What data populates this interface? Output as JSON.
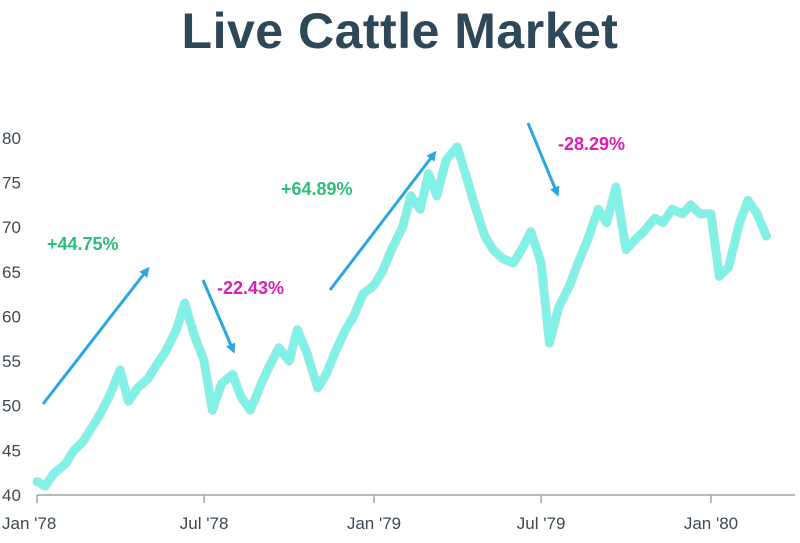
{
  "chart_data": {
    "type": "line",
    "title": "Live Cattle Market",
    "xlabel": "",
    "ylabel": "",
    "x_ticks": [
      "Jan '78",
      "Jul '78",
      "Jan '79",
      "Jul '79",
      "Jan '80"
    ],
    "y_ticks": [
      40,
      45,
      50,
      55,
      60,
      65,
      70,
      75,
      80
    ],
    "ylim": [
      40,
      82
    ],
    "xlim": [
      "1978-01",
      "1980-04"
    ],
    "grid": false,
    "colors": {
      "line": "#7df3e8",
      "line_outline": "#38d8cc",
      "gain": "#2dbe7a",
      "loss": "#d81fb4",
      "arrow": "#2ba6e0",
      "title": "#2f4858"
    },
    "series": [
      {
        "x": [
          "1978-01-01",
          "1978-01-10",
          "1978-01-20",
          "1978-02-01",
          "1978-02-10",
          "1978-02-20",
          "1978-03-01",
          "1978-03-10",
          "1978-03-20",
          "1978-04-01",
          "1978-04-10",
          "1978-04-20",
          "1978-05-01",
          "1978-05-10",
          "1978-05-20",
          "1978-06-01",
          "1978-06-10",
          "1978-06-20",
          "1978-07-01",
          "1978-07-10",
          "1978-07-20",
          "1978-08-01",
          "1978-08-10",
          "1978-08-20",
          "1978-09-01",
          "1978-09-10",
          "1978-09-20",
          "1978-10-01",
          "1978-10-10",
          "1978-10-20",
          "1978-11-01",
          "1978-11-10",
          "1978-11-20",
          "1978-12-01",
          "1978-12-10",
          "1978-12-20",
          "1979-01-01",
          "1979-01-10",
          "1979-01-20",
          "1979-02-01",
          "1979-02-10",
          "1979-02-20",
          "1979-03-01",
          "1979-03-10",
          "1979-03-20",
          "1979-04-01",
          "1979-04-10",
          "1979-04-20",
          "1979-05-01",
          "1979-05-10",
          "1979-05-20",
          "1979-06-01",
          "1979-06-10",
          "1979-06-20",
          "1979-07-01",
          "1979-07-10",
          "1979-07-20",
          "1979-08-01",
          "1979-08-10",
          "1979-08-20",
          "1979-09-01",
          "1979-09-10",
          "1979-09-20",
          "1979-10-01",
          "1979-10-10",
          "1979-10-20",
          "1979-11-01",
          "1979-11-10",
          "1979-11-20",
          "1979-12-01",
          "1979-12-10",
          "1979-12-20",
          "1980-01-01",
          "1980-01-10",
          "1980-01-20",
          "1980-02-01",
          "1980-02-10",
          "1980-02-20",
          "1980-03-01"
        ],
        "values": [
          41.5,
          41.0,
          42.5,
          43.5,
          45.0,
          46.0,
          47.5,
          49.0,
          51.0,
          54.0,
          50.5,
          52.0,
          53.0,
          54.5,
          56.0,
          58.5,
          61.5,
          58.0,
          55.0,
          49.5,
          52.5,
          53.5,
          51.0,
          49.5,
          52.5,
          54.5,
          56.5,
          55.0,
          58.5,
          56.0,
          52.0,
          53.5,
          56.0,
          58.5,
          60.0,
          62.5,
          63.5,
          65.0,
          67.5,
          70.0,
          73.5,
          72.0,
          76.0,
          73.5,
          77.5,
          79.0,
          76.0,
          72.5,
          69.0,
          67.5,
          66.5,
          66.0,
          67.5,
          69.5,
          66.0,
          57.0,
          61.0,
          63.5,
          66.0,
          68.5,
          72.0,
          70.5,
          74.5,
          67.5,
          68.5,
          69.5,
          71.0,
          70.5,
          72.0,
          71.5,
          72.5,
          71.5,
          71.5,
          64.5,
          65.5,
          70.5,
          73.0,
          71.5,
          69.0
        ],
        "color": "#7df3e8"
      }
    ],
    "annotations": [
      {
        "text": "+44.75%",
        "kind": "gain"
      },
      {
        "text": "-22.43%",
        "kind": "loss"
      },
      {
        "text": "+64.89%",
        "kind": "gain"
      },
      {
        "text": "-28.29%",
        "kind": "loss"
      }
    ]
  }
}
